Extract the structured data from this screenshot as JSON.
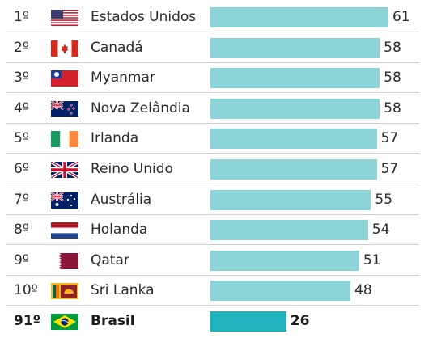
{
  "colors": {
    "bar": "#8dd4d9",
    "bar_highlight": "#21b3bd",
    "separator": "#cfcfcf",
    "text": "#2b2b2b"
  },
  "chart_data": {
    "type": "bar",
    "orientation": "horizontal",
    "title": "",
    "xlabel": "",
    "ylabel": "",
    "xlim": [
      0,
      61
    ],
    "grid": false,
    "legend": "none",
    "rows": [
      {
        "rank": "1º",
        "country": "Estados Unidos",
        "flag": "usa-flag-icon",
        "value": 61
      },
      {
        "rank": "2º",
        "country": "Canadá",
        "flag": "canada-flag-icon",
        "value": 58
      },
      {
        "rank": "3º",
        "country": "Myanmar",
        "flag": "myanmar-flag-icon",
        "value": 58
      },
      {
        "rank": "4º",
        "country": "Nova Zelândia",
        "flag": "new-zealand-flag-icon",
        "value": 58
      },
      {
        "rank": "5º",
        "country": "Irlanda",
        "flag": "ireland-flag-icon",
        "value": 57
      },
      {
        "rank": "6º",
        "country": "Reino Unido",
        "flag": "uk-flag-icon",
        "value": 57
      },
      {
        "rank": "7º",
        "country": "Austrália",
        "flag": "australia-flag-icon",
        "value": 55
      },
      {
        "rank": "8º",
        "country": "Holanda",
        "flag": "netherlands-flag-icon",
        "value": 54
      },
      {
        "rank": "9º",
        "country": "Qatar",
        "flag": "qatar-flag-icon",
        "value": 51
      },
      {
        "rank": "10º",
        "country": "Sri Lanka",
        "flag": "sri-lanka-flag-icon",
        "value": 48
      },
      {
        "rank": "91º",
        "country": "Brasil",
        "flag": "brazil-flag-icon",
        "value": 26,
        "highlight": true
      }
    ]
  }
}
